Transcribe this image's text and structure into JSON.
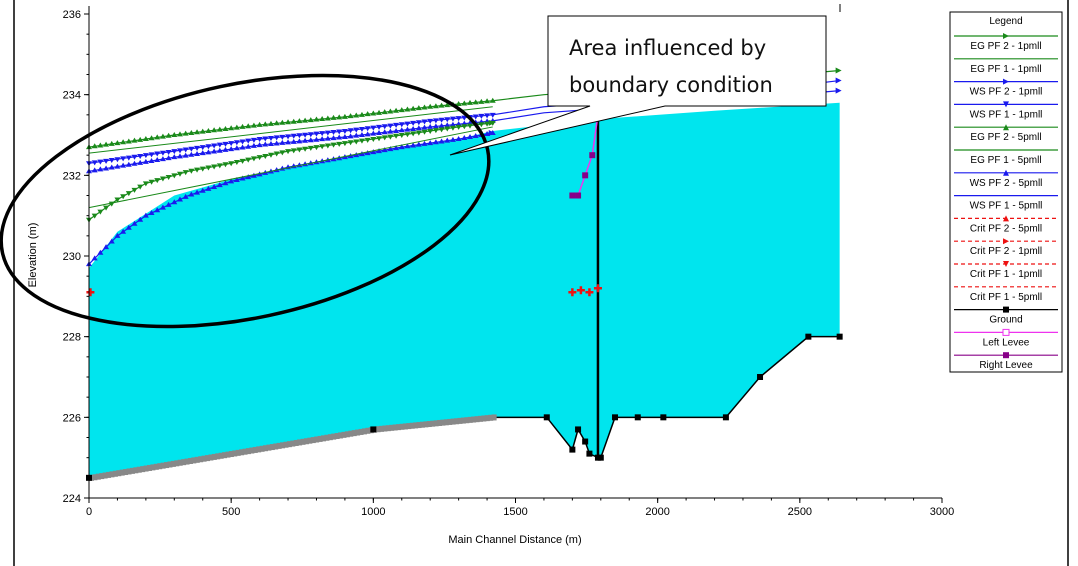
{
  "chart_data": {
    "type": "line",
    "xlabel": "Main Channel Distance (m)",
    "ylabel": "Elevation (m)",
    "xlim": [
      0,
      3000
    ],
    "ylim": [
      224,
      236
    ],
    "x_ticks": [
      "0",
      "500",
      "1000",
      "1500",
      "2000",
      "2500",
      "3000"
    ],
    "y_ticks": [
      "224",
      "226",
      "228",
      "230",
      "232",
      "234",
      "236"
    ],
    "grid": false,
    "legend_position": "right",
    "annotation": {
      "text_lines": [
        "Area influenced by",
        "boundary condition"
      ]
    },
    "legend": {
      "title": "Legend",
      "entries": [
        {
          "label": "EG  PF 2 - 1pmll",
          "color": "#1a8a1a",
          "marker": "arrow",
          "dash": false
        },
        {
          "label": "EG  PF 1 - 1pmll",
          "color": "#1a8a1a",
          "marker": "none",
          "dash": false
        },
        {
          "label": "WS  PF 2 - 1pmll",
          "color": "#1a1aee",
          "marker": "arrow",
          "dash": false
        },
        {
          "label": "WS  PF 1 - 1pmll",
          "color": "#1a1aee",
          "marker": "tri-down",
          "dash": false
        },
        {
          "label": "EG  PF 2 - 5pmll",
          "color": "#1a8a1a",
          "marker": "tri-up",
          "dash": false
        },
        {
          "label": "EG  PF 1 - 5pmll",
          "color": "#1a8a1a",
          "marker": "none",
          "dash": false
        },
        {
          "label": "WS  PF 2 - 5pmll",
          "color": "#1a1aee",
          "marker": "tri-up",
          "dash": false
        },
        {
          "label": "WS  PF 1 - 5pmll",
          "color": "#1a1aee",
          "marker": "none",
          "dash": false
        },
        {
          "label": "Crit  PF 2 - 5pmll",
          "color": "#ee1111",
          "marker": "tri-up",
          "dash": true
        },
        {
          "label": "Crit  PF 2 - 1pmll",
          "color": "#ee1111",
          "marker": "arrow",
          "dash": true
        },
        {
          "label": "Crit  PF 1 - 1pmll",
          "color": "#ee1111",
          "marker": "tri-down",
          "dash": true
        },
        {
          "label": "Crit  PF 1 - 5pmll",
          "color": "#ee1111",
          "marker": "none",
          "dash": true
        },
        {
          "label": "Ground",
          "color": "#000000",
          "marker": "square",
          "dash": false
        },
        {
          "label": "Left Levee",
          "color": "#ee33ee",
          "marker": "square-open",
          "dash": false
        },
        {
          "label": "Right Levee",
          "color": "#880088",
          "marker": "square",
          "dash": false
        }
      ]
    },
    "water_fill_color": "#00e5ee",
    "ground": {
      "x": [
        0,
        1000,
        1420,
        1610,
        1700,
        1720,
        1745,
        1760,
        1790,
        1800,
        1850,
        1930,
        2020,
        2240,
        2360,
        2530,
        2640
      ],
      "y": [
        224.5,
        225.7,
        226.0,
        226.0,
        225.2,
        225.7,
        225.4,
        225.1,
        225.0,
        225.0,
        226.0,
        226.0,
        226.0,
        226.0,
        227.0,
        228.0,
        228.0
      ]
    },
    "ws_surface": {
      "x": [
        0,
        100,
        300,
        500,
        800,
        1100,
        1300,
        1420,
        1800,
        2200,
        2640
      ],
      "y": [
        229.7,
        230.6,
        231.5,
        231.9,
        232.3,
        232.7,
        232.9,
        233.1,
        233.4,
        233.6,
        233.8
      ]
    },
    "series": [
      {
        "name": "EG  PF 2 - 1pmll",
        "color": "#1a8a1a",
        "x": [
          0,
          300,
          600,
          900,
          1200,
          1420,
          1600,
          2000,
          2400,
          2640
        ],
        "y": [
          232.7,
          233.0,
          233.25,
          233.45,
          233.7,
          233.85,
          234.0,
          234.2,
          234.45,
          234.6
        ]
      },
      {
        "name": "WS  PF 2 - 1pmll",
        "color": "#1a1aee",
        "x": [
          0,
          300,
          600,
          900,
          1200,
          1420,
          1600,
          2000,
          2400,
          2640
        ],
        "y": [
          232.3,
          232.6,
          232.9,
          233.1,
          233.35,
          233.5,
          233.7,
          233.9,
          234.15,
          234.35
        ]
      },
      {
        "name": "WS  PF 1 - 1pmll",
        "color": "#1a1aee",
        "x": [
          0,
          300,
          600,
          900,
          1200,
          1420,
          1600,
          2000,
          2400,
          2640
        ],
        "y": [
          232.1,
          232.45,
          232.75,
          232.95,
          233.2,
          233.35,
          233.55,
          233.75,
          233.95,
          234.1
        ]
      },
      {
        "name": "EG  PF 2 - 5pmll",
        "color": "#1a8a1a",
        "x": [
          0,
          100,
          200,
          350,
          500,
          700,
          900,
          1100,
          1300,
          1420
        ],
        "y": [
          230.9,
          231.4,
          231.8,
          232.1,
          232.3,
          232.6,
          232.8,
          233.0,
          233.2,
          233.3
        ]
      },
      {
        "name": "WS  PF 2 - 5pmll",
        "color": "#1a1aee",
        "x": [
          0,
          100,
          200,
          350,
          500,
          700,
          900,
          1100,
          1300,
          1420
        ],
        "y": [
          229.8,
          230.5,
          231.0,
          231.5,
          231.85,
          232.2,
          232.45,
          232.7,
          232.9,
          233.05
        ]
      }
    ],
    "crit_points": [
      {
        "x": 5,
        "y": 229.1
      },
      {
        "x": 1700,
        "y": 229.1
      },
      {
        "x": 1730,
        "y": 229.15
      },
      {
        "x": 1760,
        "y": 229.1
      },
      {
        "x": 1790,
        "y": 229.2
      }
    ],
    "levee": {
      "x": [
        1700,
        1720,
        1745,
        1770,
        1790
      ],
      "y": [
        231.5,
        231.5,
        232.0,
        232.5,
        233.5
      ]
    }
  }
}
